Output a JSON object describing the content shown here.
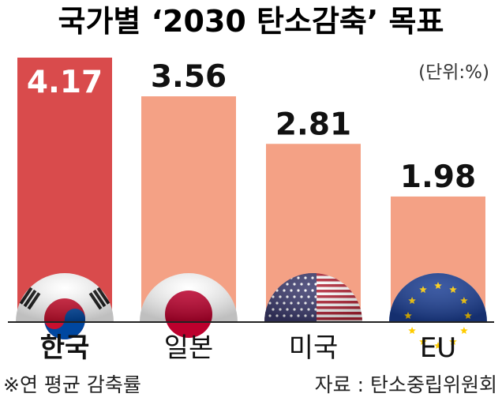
{
  "chart_data": {
    "type": "bar",
    "title": "국가별 ‘2030 탄소감축’ 목표",
    "unit": "(단위:%)",
    "categories": [
      "한국",
      "일본",
      "미국",
      "EU"
    ],
    "values": [
      4.17,
      3.56,
      2.81,
      1.98
    ],
    "value_labels": [
      "4.17",
      "3.56",
      "2.81",
      "1.98"
    ],
    "highlight_index": 0,
    "xlabel": "",
    "ylabel": "",
    "ylim": [
      0,
      4.17
    ],
    "grid": false,
    "legend": "none",
    "colors": {
      "highlight": "#d94b4c",
      "bar": "#f4a185",
      "axis": "#222222",
      "text": "#111111"
    },
    "flags": [
      "korea-flag-icon",
      "japan-flag-icon",
      "usa-flag-icon",
      "eu-flag-icon"
    ]
  },
  "footnote": "※연 평균 감축률",
  "source": "자료 : 탄소중립위원회"
}
